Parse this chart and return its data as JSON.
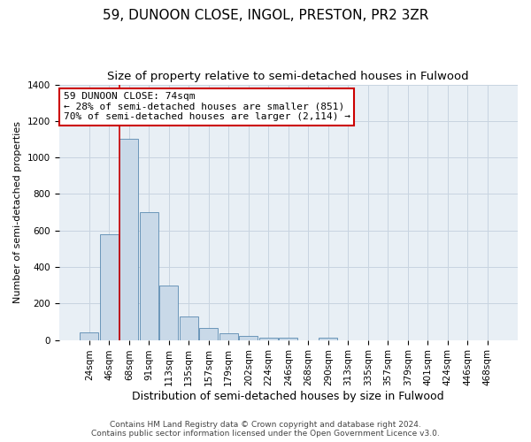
{
  "title": "59, DUNOON CLOSE, INGOL, PRESTON, PR2 3ZR",
  "subtitle": "Size of property relative to semi-detached houses in Fulwood",
  "xlabel": "Distribution of semi-detached houses by size in Fulwood",
  "ylabel": "Number of semi-detached properties",
  "categories": [
    "24sqm",
    "46sqm",
    "68sqm",
    "91sqm",
    "113sqm",
    "135sqm",
    "157sqm",
    "179sqm",
    "202sqm",
    "224sqm",
    "246sqm",
    "268sqm",
    "290sqm",
    "313sqm",
    "335sqm",
    "357sqm",
    "379sqm",
    "401sqm",
    "424sqm",
    "446sqm",
    "468sqm"
  ],
  "values": [
    40,
    580,
    1100,
    700,
    300,
    130,
    65,
    35,
    20,
    15,
    15,
    0,
    15,
    0,
    0,
    0,
    0,
    0,
    0,
    0,
    0
  ],
  "bar_color": "#c9d9e8",
  "bar_edge_color": "#5a8ab0",
  "vline_color": "#cc0000",
  "vline_pos": 1.5,
  "annotation_text": "59 DUNOON CLOSE: 74sqm\n← 28% of semi-detached houses are smaller (851)\n70% of semi-detached houses are larger (2,114) →",
  "annotation_box_color": "#ffffff",
  "annotation_box_edge": "#cc0000",
  "ylim": [
    0,
    1400
  ],
  "yticks": [
    0,
    200,
    400,
    600,
    800,
    1000,
    1200,
    1400
  ],
  "grid_color": "#c8d4e0",
  "bg_color": "#e8eff5",
  "footer": "Contains HM Land Registry data © Crown copyright and database right 2024.\nContains public sector information licensed under the Open Government Licence v3.0.",
  "title_fontsize": 11,
  "subtitle_fontsize": 9.5,
  "xlabel_fontsize": 9,
  "ylabel_fontsize": 8,
  "tick_fontsize": 7.5,
  "annotation_fontsize": 8,
  "footer_fontsize": 6.5
}
